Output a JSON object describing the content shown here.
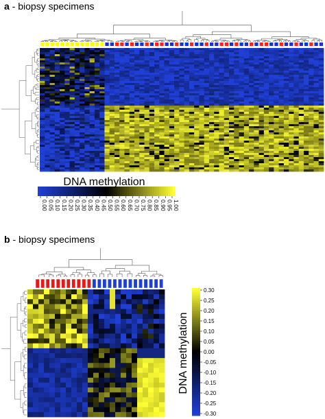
{
  "panel_a": {
    "letter": "a",
    "caption": " - biopsy specimens"
  },
  "panel_b": {
    "letter": "b",
    "caption": " - biopsy specimens"
  },
  "chart_data": [
    {
      "type": "heatmap",
      "title": "",
      "colorbar": {
        "label": "DNA methylation",
        "ticks": [
          "0.00",
          "0.05",
          "0.10",
          "0.15",
          "0.20",
          "0.25",
          "0.30",
          "0.35",
          "0.40",
          "0.45",
          "0.50",
          "0.55",
          "0.60",
          "0.65",
          "0.70",
          "0.75",
          "0.80",
          "0.85",
          "0.90",
          "0.95",
          "1.00"
        ],
        "range": [
          0,
          1
        ],
        "orientation": "horizontal",
        "colors": {
          "low": "#1f3fd6",
          "mid": "#000000",
          "high": "#ffff33"
        }
      },
      "sample_group_colors": [
        "#ffff00",
        "#ff2020",
        "#1a2fd8"
      ],
      "column_groups": [
        {
          "group": "yellow-left",
          "count": 13
        },
        {
          "group": "red-blue-mixed",
          "count": 44
        }
      ],
      "block_values": {
        "top_left": 0.3,
        "top_right": 0.08,
        "bottom_left": 0.1,
        "bottom_right": 0.85
      }
    },
    {
      "type": "heatmap",
      "title": "",
      "colorbar": {
        "label": "DNA methylation",
        "ticks": [
          "0.30",
          "0.25",
          "0.20",
          "0.15",
          "0.10",
          "0.05",
          "0.00",
          "-0.05",
          "-0.10",
          "-0.15",
          "-0.20",
          "-0.25",
          "-0.30"
        ],
        "range": [
          -0.3,
          0.3
        ],
        "orientation": "vertical",
        "colors": {
          "low": "#1f3fd6",
          "mid": "#000000",
          "high": "#ffff33"
        }
      },
      "column_groups": [
        {
          "group": "red",
          "count": 11
        },
        {
          "group": "blue",
          "count": 14
        }
      ]
    }
  ]
}
